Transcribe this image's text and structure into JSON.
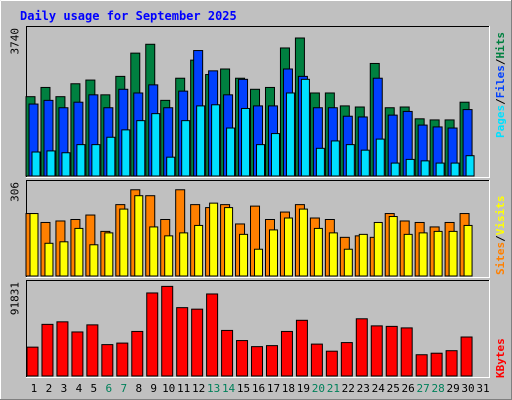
{
  "chart_data": [
    {
      "type": "bar",
      "title": "Daily usage for September 2025",
      "ytick_top": "3740",
      "ylim": [
        0,
        3740
      ],
      "categories": [
        "1",
        "2",
        "3",
        "4",
        "5",
        "6",
        "7",
        "8",
        "9",
        "10",
        "11",
        "12",
        "13",
        "14",
        "15",
        "16",
        "17",
        "18",
        "19",
        "20",
        "21",
        "22",
        "23",
        "24",
        "25",
        "26",
        "27",
        "28",
        "29",
        "30",
        "31"
      ],
      "weekend_days": [
        "6",
        "7",
        "13",
        "14",
        "20",
        "21",
        "27",
        "28"
      ],
      "legend": [
        "Pages",
        "Files",
        "Hits"
      ],
      "series": [
        {
          "name": "Hits",
          "color": "#008040",
          "values": [
            2150,
            2400,
            2150,
            2500,
            2600,
            2200,
            2700,
            3330,
            3570,
            2050,
            2650,
            3140,
            2750,
            2900,
            2650,
            2350,
            2400,
            3470,
            3740,
            2250,
            2250,
            1900,
            1870,
            3050,
            1850,
            1870,
            1550,
            1520,
            1520,
            2000,
            0
          ]
        },
        {
          "name": "Files",
          "color": "#0040ff",
          "values": [
            1950,
            2050,
            1850,
            2000,
            2200,
            1850,
            2350,
            2250,
            2470,
            1850,
            2300,
            3400,
            2850,
            2200,
            2620,
            1900,
            1900,
            2900,
            2700,
            1850,
            1850,
            1620,
            1600,
            2650,
            1650,
            1750,
            1380,
            1330,
            1300,
            1800,
            0
          ]
        },
        {
          "name": "Pages",
          "color": "#00e0ff",
          "values": [
            650,
            680,
            630,
            850,
            850,
            1050,
            1250,
            1500,
            1690,
            510,
            1500,
            1900,
            1930,
            1300,
            1830,
            850,
            1150,
            2250,
            2620,
            750,
            950,
            850,
            700,
            1000,
            350,
            450,
            410,
            350,
            350,
            550,
            0
          ]
        }
      ]
    },
    {
      "type": "bar",
      "ytick_top": "306",
      "ylim": [
        0,
        306
      ],
      "legend": [
        "Sites",
        "Visits"
      ],
      "series": [
        {
          "name": "Visits",
          "color": "#ff8000",
          "values": [
            210,
            180,
            185,
            190,
            205,
            150,
            240,
            290,
            270,
            190,
            290,
            240,
            230,
            240,
            175,
            235,
            190,
            215,
            240,
            195,
            190,
            130,
            135,
            130,
            210,
            185,
            180,
            165,
            180,
            210,
            0
          ]
        },
        {
          "name": "Sites",
          "color": "#ffff00",
          "values": [
            210,
            110,
            115,
            160,
            105,
            145,
            225,
            270,
            165,
            135,
            145,
            170,
            245,
            230,
            140,
            90,
            155,
            195,
            225,
            160,
            145,
            90,
            140,
            180,
            200,
            140,
            145,
            150,
            150,
            170,
            0
          ]
        }
      ]
    },
    {
      "type": "bar",
      "ytick_top": "91831",
      "ylim": [
        0,
        91831
      ],
      "legend": [
        "KBytes"
      ],
      "series": [
        {
          "name": "KBytes",
          "color": "#ff0000",
          "values": [
            28500,
            51000,
            53500,
            43500,
            50500,
            31000,
            32500,
            44000,
            82000,
            88500,
            67500,
            66000,
            81000,
            45000,
            35000,
            29000,
            30000,
            44000,
            55000,
            31500,
            24500,
            33000,
            56500,
            49500,
            49000,
            47500,
            21000,
            22500,
            25000,
            38500,
            0
          ]
        }
      ]
    }
  ]
}
